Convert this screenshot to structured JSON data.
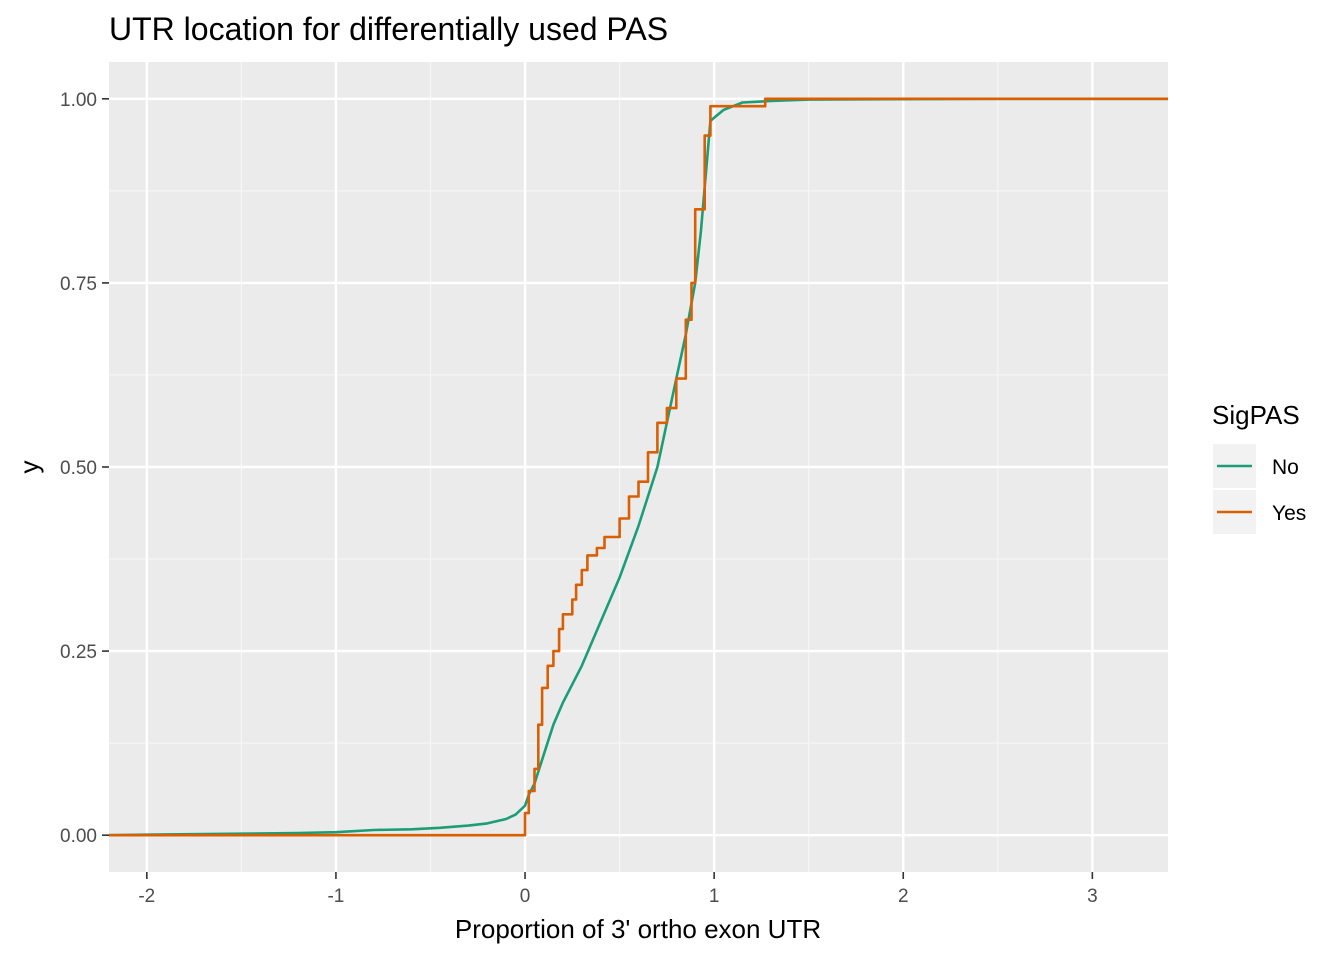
{
  "chart_data": {
    "type": "line",
    "title": "UTR location for differentially used PAS",
    "xlabel": "Proportion of 3' ortho exon UTR",
    "ylabel": "y",
    "xlim": [
      -2.2,
      3.4
    ],
    "ylim": [
      -0.05,
      1.05
    ],
    "x_ticks": [
      -2,
      -1,
      0,
      1,
      2,
      3
    ],
    "x_tick_labels": [
      "-2",
      "-1",
      "0",
      "1",
      "2",
      "3"
    ],
    "y_ticks": [
      0,
      0.25,
      0.5,
      0.75,
      1
    ],
    "y_tick_labels": [
      "0.00",
      "0.25",
      "0.50",
      "0.75",
      "1.00"
    ],
    "grid": true,
    "legend": {
      "title": "SigPAS",
      "placement": "right"
    },
    "series": [
      {
        "name": "No",
        "color": "#1b9e77",
        "step": false,
        "points": [
          [
            -2.2,
            0.0
          ],
          [
            -1.9,
            0.001
          ],
          [
            -1.5,
            0.002
          ],
          [
            -1.2,
            0.003
          ],
          [
            -1.0,
            0.004
          ],
          [
            -0.8,
            0.007
          ],
          [
            -0.6,
            0.008
          ],
          [
            -0.45,
            0.01
          ],
          [
            -0.3,
            0.013
          ],
          [
            -0.2,
            0.016
          ],
          [
            -0.1,
            0.022
          ],
          [
            -0.05,
            0.028
          ],
          [
            0.0,
            0.04
          ],
          [
            0.02,
            0.055
          ],
          [
            0.05,
            0.07
          ],
          [
            0.1,
            0.11
          ],
          [
            0.15,
            0.15
          ],
          [
            0.2,
            0.18
          ],
          [
            0.3,
            0.23
          ],
          [
            0.4,
            0.29
          ],
          [
            0.5,
            0.35
          ],
          [
            0.6,
            0.42
          ],
          [
            0.7,
            0.5
          ],
          [
            0.8,
            0.62
          ],
          [
            0.85,
            0.68
          ],
          [
            0.9,
            0.75
          ],
          [
            0.93,
            0.82
          ],
          [
            0.95,
            0.88
          ],
          [
            0.97,
            0.94
          ],
          [
            0.98,
            0.97
          ],
          [
            1.05,
            0.985
          ],
          [
            1.15,
            0.995
          ],
          [
            1.3,
            0.997
          ],
          [
            1.5,
            0.999
          ],
          [
            2.5,
            1.0
          ],
          [
            3.4,
            1.0
          ]
        ]
      },
      {
        "name": "Yes",
        "color": "#d95f02",
        "step": true,
        "points": [
          [
            -2.2,
            0.0
          ],
          [
            -0.02,
            0.0
          ],
          [
            0.0,
            0.03
          ],
          [
            0.02,
            0.06
          ],
          [
            0.05,
            0.09
          ],
          [
            0.07,
            0.15
          ],
          [
            0.09,
            0.2
          ],
          [
            0.12,
            0.23
          ],
          [
            0.15,
            0.25
          ],
          [
            0.18,
            0.28
          ],
          [
            0.2,
            0.3
          ],
          [
            0.25,
            0.32
          ],
          [
            0.27,
            0.34
          ],
          [
            0.3,
            0.36
          ],
          [
            0.33,
            0.38
          ],
          [
            0.38,
            0.39
          ],
          [
            0.42,
            0.405
          ],
          [
            0.5,
            0.43
          ],
          [
            0.55,
            0.46
          ],
          [
            0.6,
            0.48
          ],
          [
            0.65,
            0.52
          ],
          [
            0.7,
            0.56
          ],
          [
            0.75,
            0.58
          ],
          [
            0.8,
            0.62
          ],
          [
            0.85,
            0.7
          ],
          [
            0.88,
            0.75
          ],
          [
            0.9,
            0.85
          ],
          [
            0.95,
            0.95
          ],
          [
            0.98,
            0.99
          ],
          [
            1.27,
            1.0
          ],
          [
            3.4,
            1.0
          ]
        ]
      }
    ]
  }
}
